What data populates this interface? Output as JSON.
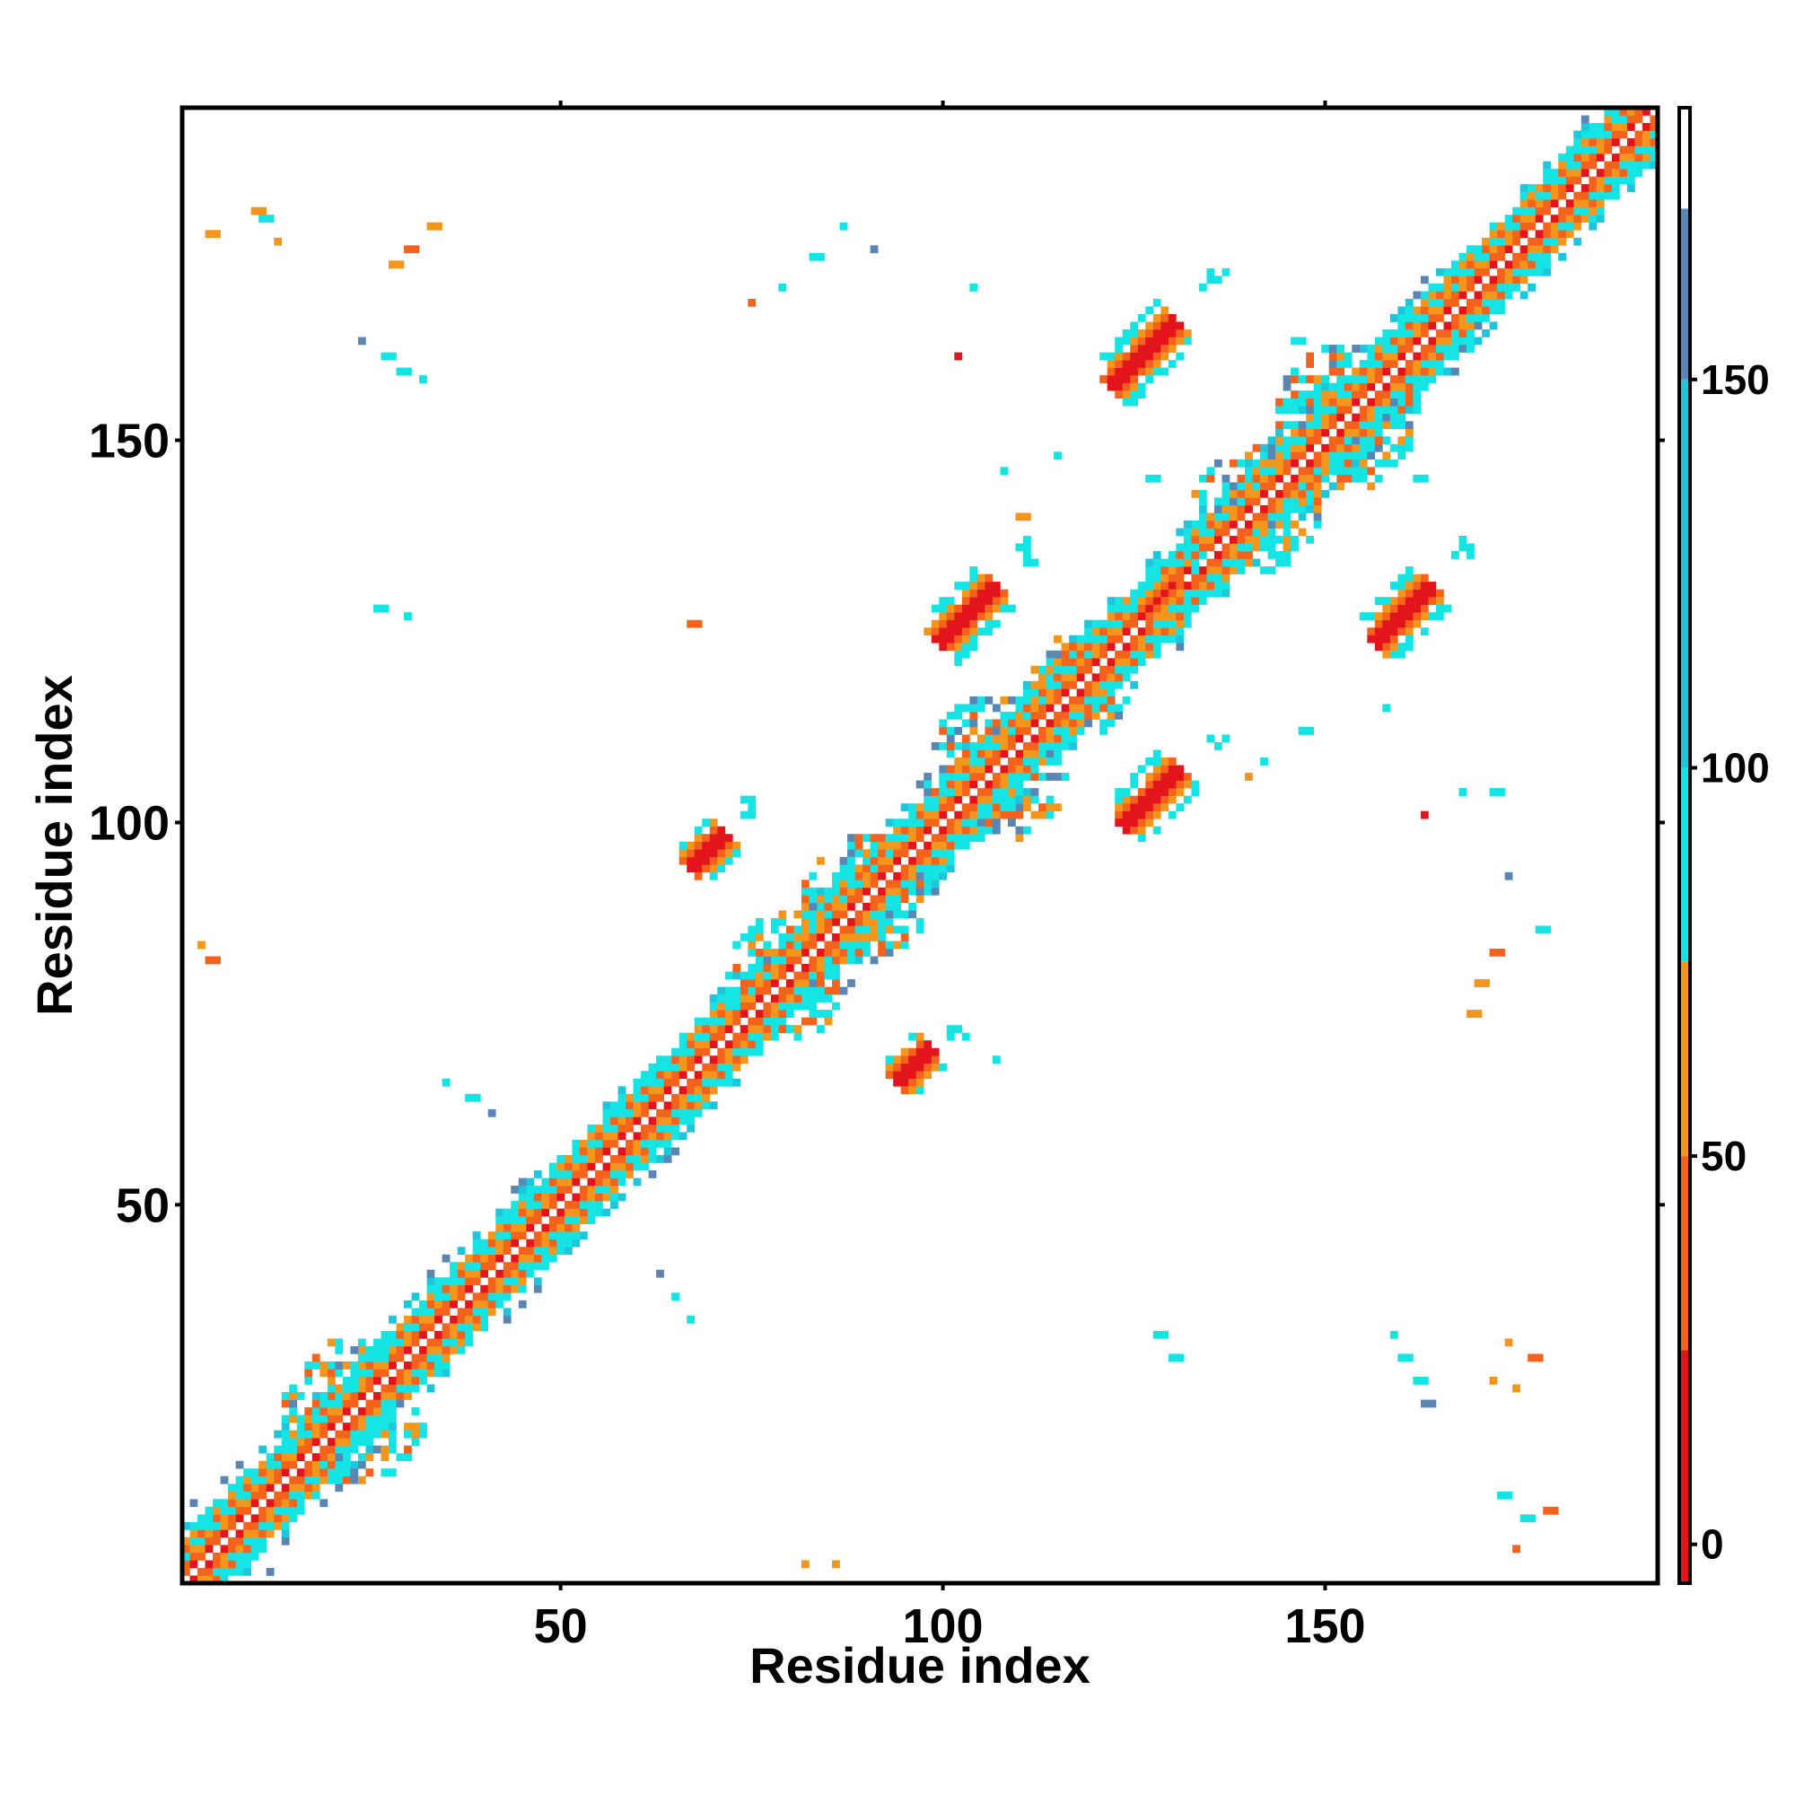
{
  "chart_data": {
    "type": "heatmap",
    "xlabel": "Residue index",
    "ylabel": "Residue index",
    "x_range": [
      1,
      193
    ],
    "y_range": [
      1,
      193
    ],
    "x_ticks": [
      50,
      100,
      150
    ],
    "y_ticks": [
      50,
      100,
      150
    ],
    "colorbar": {
      "range": [
        -5,
        185
      ],
      "ticks": [
        0,
        50,
        100,
        150
      ],
      "bands": [
        {
          "from": -5,
          "to": 25,
          "color": "#e4141c"
        },
        {
          "from": 25,
          "to": 50,
          "color": "#f4621c"
        },
        {
          "from": 50,
          "to": 75,
          "color": "#f4961c"
        },
        {
          "from": 75,
          "to": 100,
          "color": "#14e4e4"
        },
        {
          "from": 100,
          "to": 150,
          "color": "#1ec6dc"
        },
        {
          "from": 150,
          "to": 172,
          "color": "#5a86b4"
        },
        {
          "from": 172,
          "to": 185,
          "color": "#ffffff"
        }
      ]
    },
    "structure": {
      "diagonal": {
        "from": 1,
        "to": 193,
        "half_width": 8
      },
      "diagonal_clusters": [
        {
          "x": 23,
          "y": 23,
          "r": 7
        },
        {
          "x": 80,
          "y": 80,
          "r": 6
        },
        {
          "x": 90,
          "y": 90,
          "r": 6
        },
        {
          "x": 107,
          "y": 107,
          "r": 7
        },
        {
          "x": 118,
          "y": 118,
          "r": 5
        },
        {
          "x": 141,
          "y": 141,
          "r": 6
        },
        {
          "x": 153,
          "y": 153,
          "r": 7
        },
        {
          "x": 165,
          "y": 165,
          "r": 4
        }
      ],
      "patches": [
        {
          "x": 126,
          "y": 161,
          "len": 8,
          "w": 2.5,
          "core": "#e4141c"
        },
        {
          "x": 103,
          "y": 127,
          "len": 7,
          "w": 2.5,
          "core": "#e4141c"
        },
        {
          "x": 160,
          "y": 127,
          "len": 7,
          "w": 2.5,
          "core": "#e4141c"
        },
        {
          "x": 127,
          "y": 103,
          "len": 7,
          "w": 2.5,
          "core": "#e4141c"
        },
        {
          "x": 69,
          "y": 96,
          "len": 4,
          "w": 2,
          "core": "#e4141c"
        },
        {
          "x": 96,
          "y": 68,
          "len": 4,
          "w": 2,
          "core": "#e4141c"
        },
        {
          "x": 128,
          "y": 129,
          "len": 4,
          "w": 1.5,
          "core": "#e4141c"
        }
      ],
      "specks": [
        {
          "x": 10,
          "y": 180,
          "c": "#f4961c"
        },
        {
          "x": 11,
          "y": 179,
          "c": "#14e4e4"
        },
        {
          "x": 13,
          "y": 176,
          "c": "#f4961c"
        },
        {
          "x": 4,
          "y": 177,
          "c": "#f4961c"
        },
        {
          "x": 28,
          "y": 173,
          "c": "#f4961c"
        },
        {
          "x": 30,
          "y": 175,
          "c": "#f4621c"
        },
        {
          "x": 33,
          "y": 178,
          "c": "#f4961c"
        },
        {
          "x": 24,
          "y": 163,
          "c": "#5a86b4"
        },
        {
          "x": 27,
          "y": 161,
          "c": "#14e4e4"
        },
        {
          "x": 29,
          "y": 159,
          "c": "#14e4e4"
        },
        {
          "x": 32,
          "y": 158,
          "c": "#14e4e4"
        },
        {
          "x": 26,
          "y": 128,
          "c": "#14e4e4"
        },
        {
          "x": 30,
          "y": 127,
          "c": "#14e4e4"
        },
        {
          "x": 67,
          "y": 126,
          "c": "#f4621c"
        },
        {
          "x": 75,
          "y": 168,
          "c": "#f4621c"
        },
        {
          "x": 79,
          "y": 170,
          "c": "#14e4e4"
        },
        {
          "x": 83,
          "y": 174,
          "c": "#14e4e4"
        },
        {
          "x": 87,
          "y": 178,
          "c": "#14e4e4"
        },
        {
          "x": 91,
          "y": 175,
          "c": "#5a86b4"
        },
        {
          "x": 104,
          "y": 170,
          "c": "#14e4e4"
        },
        {
          "x": 102,
          "y": 161,
          "c": "#e4141c"
        },
        {
          "x": 108,
          "y": 146,
          "c": "#14e4e4"
        },
        {
          "x": 110,
          "y": 140,
          "c": "#f4961c"
        },
        {
          "x": 115,
          "y": 148,
          "c": "#14e4e4"
        },
        {
          "x": 127,
          "y": 145,
          "c": "#14e4e4"
        },
        {
          "x": 146,
          "y": 163,
          "c": "#14e4e4"
        },
        {
          "x": 162,
          "y": 145,
          "c": "#14e4e4"
        },
        {
          "x": 158,
          "y": 115,
          "c": "#14e4e4"
        },
        {
          "x": 147,
          "y": 112,
          "c": "#14e4e4"
        },
        {
          "x": 142,
          "y": 108,
          "c": "#14e4e4"
        },
        {
          "x": 140,
          "y": 106,
          "c": "#f4961c"
        },
        {
          "x": 163,
          "y": 101,
          "c": "#e4141c"
        },
        {
          "x": 168,
          "y": 104,
          "c": "#14e4e4"
        },
        {
          "x": 172,
          "y": 104,
          "c": "#14e4e4"
        },
        {
          "x": 174,
          "y": 93,
          "c": "#5a86b4"
        },
        {
          "x": 178,
          "y": 86,
          "c": "#14e4e4"
        },
        {
          "x": 172,
          "y": 83,
          "c": "#f4621c"
        },
        {
          "x": 170,
          "y": 79,
          "c": "#f4961c"
        },
        {
          "x": 169,
          "y": 75,
          "c": "#f4961c"
        },
        {
          "x": 3,
          "y": 84,
          "c": "#f4961c"
        },
        {
          "x": 4,
          "y": 82,
          "c": "#f4621c"
        },
        {
          "x": 35,
          "y": 66,
          "c": "#14e4e4"
        },
        {
          "x": 38,
          "y": 64,
          "c": "#14e4e4"
        },
        {
          "x": 41,
          "y": 62,
          "c": "#5a86b4"
        },
        {
          "x": 63,
          "y": 41,
          "c": "#5a86b4"
        },
        {
          "x": 65,
          "y": 38,
          "c": "#14e4e4"
        },
        {
          "x": 67,
          "y": 35,
          "c": "#14e4e4"
        },
        {
          "x": 128,
          "y": 33,
          "c": "#14e4e4"
        },
        {
          "x": 130,
          "y": 30,
          "c": "#14e4e4"
        },
        {
          "x": 159,
          "y": 33,
          "c": "#14e4e4"
        },
        {
          "x": 160,
          "y": 30,
          "c": "#14e4e4"
        },
        {
          "x": 162,
          "y": 27,
          "c": "#14e4e4"
        },
        {
          "x": 163,
          "y": 24,
          "c": "#5a86b4"
        },
        {
          "x": 174,
          "y": 32,
          "c": "#f4961c"
        },
        {
          "x": 177,
          "y": 30,
          "c": "#f4621c"
        },
        {
          "x": 172,
          "y": 27,
          "c": "#f4961c"
        },
        {
          "x": 175,
          "y": 26,
          "c": "#f4961c"
        },
        {
          "x": 173,
          "y": 12,
          "c": "#14e4e4"
        },
        {
          "x": 176,
          "y": 9,
          "c": "#14e4e4"
        },
        {
          "x": 179,
          "y": 10,
          "c": "#f4621c"
        },
        {
          "x": 175,
          "y": 5,
          "c": "#f4621c"
        },
        {
          "x": 82,
          "y": 3,
          "c": "#f4961c"
        },
        {
          "x": 86,
          "y": 3,
          "c": "#f4961c"
        },
        {
          "x": 12,
          "y": 2,
          "c": "#5a86b4"
        },
        {
          "x": 2,
          "y": 11,
          "c": "#5a86b4"
        },
        {
          "x": 107,
          "y": 69,
          "c": "#14e4e4"
        }
      ]
    }
  }
}
